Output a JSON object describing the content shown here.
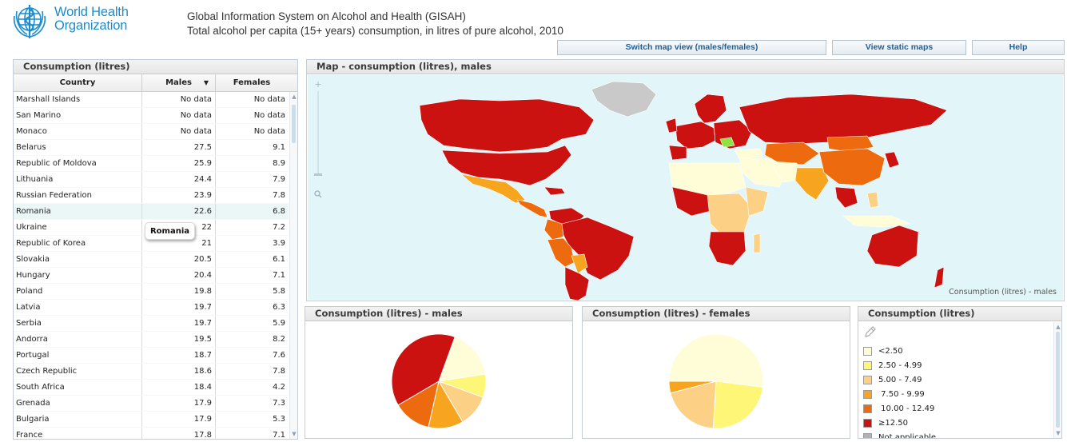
{
  "header": {
    "logo_line1": "World Health",
    "logo_line2": "Organization",
    "title": "Global Information System on Alcohol and Health (GISAH)",
    "subtitle": "Total alcohol per capita (15+ years) consumption, in litres of pure alcohol, 2010"
  },
  "toolbar": {
    "switch_label": "Switch map view (males/females)",
    "static_label": "View static maps",
    "help_label": "Help"
  },
  "table": {
    "title": "Consumption (litres)",
    "col_country": "Country",
    "col_males": "Males",
    "col_females": "Females",
    "sort_indicator": "▼",
    "tooltip": "Romania",
    "rows": [
      {
        "country": "Marshall Islands",
        "males": "No data",
        "females": "No data"
      },
      {
        "country": "San Marino",
        "males": "No data",
        "females": "No data"
      },
      {
        "country": "Monaco",
        "males": "No data",
        "females": "No data"
      },
      {
        "country": "Belarus",
        "males": "27.5",
        "females": "9.1"
      },
      {
        "country": "Republic of Moldova",
        "males": "25.9",
        "females": "8.9"
      },
      {
        "country": "Lithuania",
        "males": "24.4",
        "females": "7.9"
      },
      {
        "country": "Russian Federation",
        "males": "23.9",
        "females": "7.8"
      },
      {
        "country": "Romania",
        "males": "22.6",
        "females": "6.8"
      },
      {
        "country": "Ukraine",
        "males": "22",
        "females": "7.2"
      },
      {
        "country": "Republic of Korea",
        "males": "21",
        "females": "3.9"
      },
      {
        "country": "Slovakia",
        "males": "20.5",
        "females": "6.1"
      },
      {
        "country": "Hungary",
        "males": "20.4",
        "females": "7.1"
      },
      {
        "country": "Poland",
        "males": "19.8",
        "females": "5.8"
      },
      {
        "country": "Latvia",
        "males": "19.7",
        "females": "6.3"
      },
      {
        "country": "Serbia",
        "males": "19.7",
        "females": "5.9"
      },
      {
        "country": "Andorra",
        "males": "19.5",
        "females": "8.2"
      },
      {
        "country": "Portugal",
        "males": "18.7",
        "females": "7.6"
      },
      {
        "country": "Czech Republic",
        "males": "18.6",
        "females": "7.8"
      },
      {
        "country": "South Africa",
        "males": "18.4",
        "females": "4.2"
      },
      {
        "country": "Grenada",
        "males": "17.9",
        "females": "7.3"
      },
      {
        "country": "Bulgaria",
        "males": "17.9",
        "females": "5.3"
      },
      {
        "country": "France",
        "males": "17.8",
        "females": "7.1"
      }
    ]
  },
  "map": {
    "title": "Map - consumption (litres), males",
    "caption": "Consumption (litres) - males",
    "colors": {
      "ocean": "#e2f6f9",
      "very_high": "#cc1111",
      "high": "#ee6a0e",
      "mid_high": "#f7a51e",
      "mid": "#fcd185",
      "low": "#fdf676",
      "very_low": "#fefdd7",
      "na": "#c9c9c9",
      "highlight": "#8ee343"
    }
  },
  "pie_males": {
    "title": "Consumption (litres) - males"
  },
  "pie_females": {
    "title": "Consumption (litres) - females"
  },
  "legend": {
    "title": "Consumption (litres)",
    "items": [
      {
        "label": "<2.50",
        "color": "#fefdd7"
      },
      {
        "label": "2.50 - 4.99",
        "color": "#fdf676"
      },
      {
        "label": "5.00 - 7.49",
        "color": "#fcd185"
      },
      {
        "label": " 7.50 - 9.99",
        "color": "#f7a51e"
      },
      {
        "label": " 10.00 - 12.49",
        "color": "#ee6a0e"
      },
      {
        "label": "≥12.50",
        "color": "#cc1111"
      },
      {
        "label": "Not applicable",
        "color": "#b3b3b3"
      }
    ]
  },
  "chart_data": [
    {
      "type": "pie",
      "title": "Consumption (litres) - males",
      "categories": [
        "<2.50",
        "2.50 - 4.99",
        "5.00 - 7.49",
        "7.50 - 9.99",
        "10.00 - 12.49",
        "≥12.50"
      ],
      "values": [
        17,
        8,
        11,
        12,
        13,
        39
      ]
    },
    {
      "type": "pie",
      "title": "Consumption (litres) - females",
      "categories": [
        "<2.50",
        "2.50 - 4.99",
        "5.00 - 7.49",
        "7.50 - 9.99",
        "10.00 - 12.49",
        "≥12.50"
      ],
      "values": [
        52,
        24,
        20,
        4,
        0,
        0
      ]
    }
  ]
}
